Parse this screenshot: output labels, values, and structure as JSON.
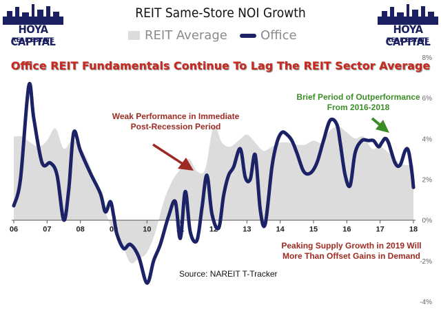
{
  "header": {
    "title": "REIT Same-Store NOI Growth",
    "subtitle": "Office REIT Fundamentals Continue To Lag The REIT Sector Average"
  },
  "logos": {
    "main": "HOYA CAPITAL",
    "sub": "REAL ESTATE"
  },
  "legend": {
    "items": [
      {
        "label": "REIT Average",
        "color": "#dcdcdc",
        "style": "area"
      },
      {
        "label": "Office",
        "color": "#1b2366",
        "style": "line"
      }
    ]
  },
  "annotations": {
    "outperformance": {
      "line1": "Brief Period of Outperformance",
      "line2": "From 2016-2018"
    },
    "weak": {
      "line1": "Weak Performance in Immediate",
      "line2": "Post-Recession Period"
    },
    "supply": {
      "line1": "Peaking Supply Growth in 2019 Will",
      "line2": "More Than Offset Gains in Demand"
    }
  },
  "source": "Source: NAREIT T-Tracker",
  "colors": {
    "office_line": "#1b2366",
    "reit_area": "#dcdcdc",
    "subtitle": "#c8281e",
    "arrow_red": "#9c2a22",
    "arrow_green": "#3c8c28"
  },
  "chart_data": {
    "type": "area",
    "x_tick_labels": [
      "06",
      "07",
      "08",
      "09",
      "10",
      "11",
      "12",
      "13",
      "14",
      "15",
      "16",
      "17",
      "18"
    ],
    "y_tick_labels": [
      "8%",
      "6%",
      "4%",
      "2%",
      "0%",
      "-2%",
      "-4%"
    ],
    "xlim": [
      2006,
      2018
    ],
    "ylim": [
      -4,
      8
    ],
    "y_axis_side": "right",
    "grid": false,
    "legend_position": "top",
    "series": [
      {
        "name": "REIT Average",
        "type": "area",
        "x": [
          2006.0,
          2006.25,
          2006.5,
          2006.75,
          2007.0,
          2007.25,
          2007.5,
          2007.75,
          2008.0,
          2008.25,
          2008.5,
          2008.75,
          2009.0,
          2009.25,
          2009.5,
          2009.75,
          2010.0,
          2010.25,
          2010.5,
          2010.75,
          2011.0,
          2011.25,
          2011.5,
          2011.75,
          2012.0,
          2012.25,
          2012.5,
          2012.75,
          2013.0,
          2013.25,
          2013.5,
          2013.75,
          2014.0,
          2014.25,
          2014.5,
          2014.75,
          2015.0,
          2015.25,
          2015.5,
          2015.75,
          2016.0,
          2016.25,
          2016.5,
          2016.75,
          2017.0,
          2017.25,
          2017.5,
          2017.75,
          2018.0
        ],
        "values": [
          4.1,
          4.1,
          3.8,
          3.6,
          3.9,
          4.5,
          3.5,
          3.9,
          3.6,
          2.8,
          1.6,
          0.4,
          -0.6,
          -1.2,
          -2.1,
          -1.9,
          -1.6,
          -0.6,
          0.9,
          1.9,
          2.5,
          3.0,
          2.4,
          2.5,
          4.6,
          3.8,
          3.6,
          3.9,
          4.2,
          3.8,
          3.4,
          3.6,
          3.8,
          3.8,
          3.7,
          3.7,
          3.9,
          3.8,
          4.4,
          4.6,
          4.3,
          4.0,
          4.1,
          3.5,
          3.6,
          3.3,
          2.9,
          2.7,
          2.7
        ]
      },
      {
        "name": "Office",
        "type": "line",
        "x": [
          2006.0,
          2006.2,
          2006.45,
          2006.6,
          2006.85,
          2007.1,
          2007.3,
          2007.5,
          2007.65,
          2007.8,
          2008.0,
          2008.3,
          2008.6,
          2008.75,
          2008.9,
          2009.0,
          2009.1,
          2009.3,
          2009.5,
          2009.75,
          2010.0,
          2010.2,
          2010.4,
          2010.65,
          2010.85,
          2011.0,
          2011.15,
          2011.3,
          2011.5,
          2011.65,
          2011.8,
          2011.95,
          2012.15,
          2012.3,
          2012.45,
          2012.6,
          2012.8,
          2012.95,
          2013.1,
          2013.25,
          2013.4,
          2013.55,
          2013.75,
          2013.9,
          2014.05,
          2014.2,
          2014.35,
          2014.5,
          2014.7,
          2014.9,
          2015.1,
          2015.3,
          2015.5,
          2015.7,
          2015.8,
          2015.95,
          2016.1,
          2016.25,
          2016.45,
          2016.65,
          2016.8,
          2016.95,
          2017.05,
          2017.15,
          2017.25,
          2017.45,
          2017.6,
          2017.75,
          2017.85,
          2017.95,
          2018.0
        ],
        "values": [
          0.7,
          2.0,
          6.6,
          5.0,
          2.8,
          2.8,
          2.2,
          0.0,
          1.5,
          4.3,
          3.4,
          2.3,
          1.3,
          0.4,
          0.9,
          0.2,
          -0.7,
          -1.4,
          -1.2,
          -1.8,
          -3.1,
          -2.0,
          -1.2,
          0.2,
          0.9,
          -0.9,
          1.4,
          -0.6,
          -1.0,
          0.6,
          2.2,
          0.3,
          -0.4,
          1.2,
          2.2,
          2.6,
          3.5,
          2.1,
          2.0,
          3.2,
          0.5,
          -0.2,
          2.6,
          3.8,
          4.3,
          4.2,
          3.9,
          3.3,
          2.4,
          2.3,
          2.8,
          3.9,
          4.9,
          4.7,
          3.8,
          2.2,
          1.7,
          3.3,
          3.9,
          3.9,
          3.9,
          3.6,
          3.8,
          4.0,
          3.8,
          2.8,
          2.7,
          3.4,
          3.4,
          2.4,
          1.6
        ]
      }
    ]
  }
}
